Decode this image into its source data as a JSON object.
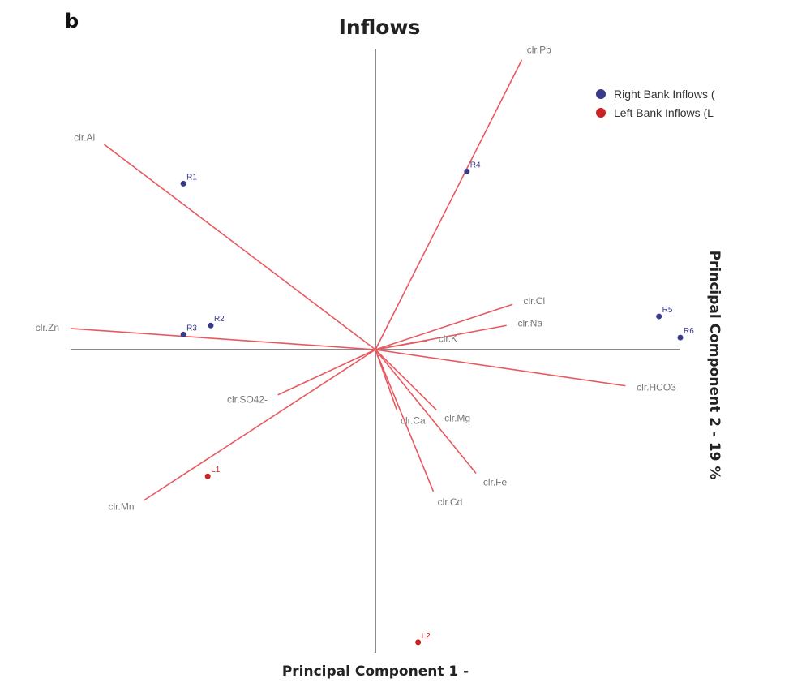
{
  "chart_data": {
    "type": "scatter",
    "subtype": "pca-biplot",
    "panel_label": "b",
    "title": "Inflows",
    "xlabel": "Principal Component 1 - ",
    "ylabel": "Principal Component 2 - 19 %",
    "xlim": [
      -1,
      1
    ],
    "ylim": [
      -1,
      1
    ],
    "grid": false,
    "legend_position": "top-right",
    "colors": {
      "right": "#3a3a8c",
      "left": "#cc2222",
      "loading": "#e8595f",
      "axis": "#8a8a8a"
    },
    "legend": [
      {
        "name": "Right Bank Inflows (",
        "color": "#3a3a8c"
      },
      {
        "name": "Left Bank Inflows (L",
        "color": "#cc2222"
      }
    ],
    "variables": [
      {
        "name": "clr.Pb",
        "x": 0.48,
        "y": 0.96
      },
      {
        "name": "clr.Al",
        "x": -0.89,
        "y": 0.68
      },
      {
        "name": "clr.Zn",
        "x": -1.0,
        "y": 0.07
      },
      {
        "name": "clr.Cl",
        "x": 0.45,
        "y": 0.15
      },
      {
        "name": "clr.Na",
        "x": 0.43,
        "y": 0.08
      },
      {
        "name": "clr.K",
        "x": 0.17,
        "y": 0.03
      },
      {
        "name": "clr.HCO3",
        "x": 0.82,
        "y": -0.12
      },
      {
        "name": "clr.SO42-",
        "x": -0.32,
        "y": -0.15
      },
      {
        "name": "clr.Ca",
        "x": 0.07,
        "y": -0.2
      },
      {
        "name": "clr.Mg",
        "x": 0.2,
        "y": -0.2
      },
      {
        "name": "clr.Fe",
        "x": 0.33,
        "y": -0.41
      },
      {
        "name": "clr.Cd",
        "x": 0.19,
        "y": -0.47
      },
      {
        "name": "clr.Mn",
        "x": -0.76,
        "y": -0.5
      }
    ],
    "observations": [
      {
        "label": "R4",
        "x": 0.3,
        "y": 0.59,
        "group": "right"
      },
      {
        "label": "R1",
        "x": -0.63,
        "y": 0.55,
        "group": "right"
      },
      {
        "label": "R2",
        "x": -0.54,
        "y": 0.08,
        "group": "right"
      },
      {
        "label": "R3",
        "x": -0.63,
        "y": 0.05,
        "group": "right"
      },
      {
        "label": "R5",
        "x": 0.93,
        "y": 0.11,
        "group": "right"
      },
      {
        "label": "R6",
        "x": 1.0,
        "y": 0.04,
        "group": "right"
      },
      {
        "label": "L1",
        "x": -0.55,
        "y": -0.42,
        "group": "left"
      },
      {
        "label": "L2",
        "x": 0.14,
        "y": -0.97,
        "group": "left"
      }
    ]
  }
}
